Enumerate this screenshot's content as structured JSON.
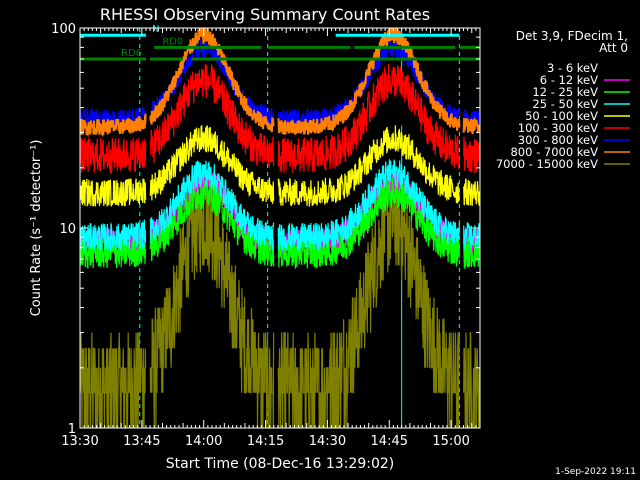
{
  "chart_data": {
    "type": "line",
    "title": "RHESSI Observing Summary Count Rates",
    "xlabel": "Start Time (08-Dec-16 13:29:02)",
    "ylabel": "Count Rate (s⁻¹ detector⁻¹)",
    "yscale": "log",
    "ylim": [
      1,
      100
    ],
    "xlim_minutes": [
      0,
      97
    ],
    "x_ticks": [
      {
        "label": "13:30",
        "minute": 0
      },
      {
        "label": "13:45",
        "minute": 15
      },
      {
        "label": "14:00",
        "minute": 30
      },
      {
        "label": "14:15",
        "minute": 45
      },
      {
        "label": "14:30",
        "minute": 60
      },
      {
        "label": "14:45",
        "minute": 75
      },
      {
        "label": "15:00",
        "minute": 90
      }
    ],
    "y_ticks": [
      {
        "label": "1",
        "value": 1
      },
      {
        "label": "10",
        "value": 10
      },
      {
        "label": "100",
        "value": 100
      }
    ],
    "legend": {
      "header": [
        "Det 3,9, FDecim 1,",
        "Att 0"
      ],
      "position": "right"
    },
    "series": [
      {
        "name": "3 - 6 keV",
        "color": "#000000",
        "base": 28,
        "peak": 46,
        "noise": 0.14
      },
      {
        "name": "6 - 12 keV",
        "color": "#ff00ff",
        "base": 8.5,
        "peak": 17,
        "noise": 0.07
      },
      {
        "name": "12 - 25 keV",
        "color": "#00ff00",
        "base": 7.5,
        "peak": 15,
        "noise": 0.08
      },
      {
        "name": "25 - 50 keV",
        "color": "#00ffff",
        "base": 9.0,
        "peak": 19,
        "noise": 0.07
      },
      {
        "name": "50 - 100 keV",
        "color": "#ffff00",
        "base": 15,
        "peak": 28,
        "noise": 0.07
      },
      {
        "name": "100 - 300 keV",
        "color": "#ff0000",
        "base": 23,
        "peak": 55,
        "noise": 0.09
      },
      {
        "name": "300 - 800 keV",
        "color": "#0000ff",
        "base": 35,
        "peak": 80,
        "noise": 0.05
      },
      {
        "name": "800 - 7000 keV",
        "color": "#ff8000",
        "base": 32,
        "peak": 92,
        "noise": 0.04
      },
      {
        "name": "7000 - 15000 keV",
        "color": "#808000",
        "base": 1.6,
        "peak": 11,
        "noise": 0.16
      }
    ],
    "peaks_minutes": [
      30,
      76
    ],
    "data_gaps_minutes": [
      [
        16,
        17
      ],
      [
        47,
        48
      ],
      [
        92,
        93
      ]
    ],
    "flag_bars": [
      {
        "label": "N",
        "color": "#00ffff",
        "level": 92,
        "segments": [
          [
            0,
            16
          ],
          [
            62,
            92
          ]
        ]
      },
      {
        "label": "RD0",
        "color": "#008000",
        "level": 80,
        "segments": [
          [
            18,
            44
          ],
          [
            45.5,
            65.5
          ],
          [
            66.5,
            91
          ],
          [
            92,
            97
          ]
        ]
      },
      {
        "label": "RD6",
        "color": "#008000",
        "level": 70,
        "segments": [
          [
            0,
            16
          ],
          [
            17,
            25
          ],
          [
            27,
            97
          ]
        ]
      }
    ],
    "vertical_markers": [
      {
        "minute": -0.5,
        "color": "#00ffff",
        "style": "solid"
      },
      {
        "minute": 14.5,
        "color": "#00ffff",
        "style": "dashed"
      },
      {
        "minute": 45.5,
        "color": "#00ffff",
        "style": "dashed"
      },
      {
        "minute": 78,
        "color": "#00ffff",
        "style": "solid"
      },
      {
        "minute": 92,
        "color": "#00ffff",
        "style": "dashed"
      }
    ]
  },
  "timestamp": "1-Sep-2022 19:11"
}
